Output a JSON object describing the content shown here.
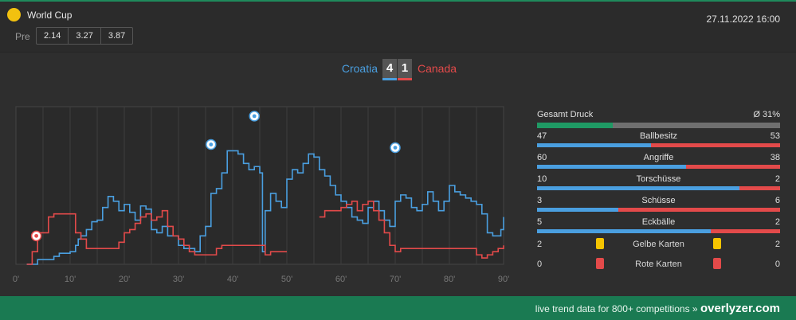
{
  "header": {
    "competition": "World Cup",
    "date": "27.11.2022 16:00",
    "pre_label": "Pre",
    "odds": [
      "2.14",
      "3.27",
      "3.87"
    ]
  },
  "match": {
    "home": "Croatia",
    "away": "Canada",
    "home_score": "4",
    "away_score": "1"
  },
  "colors": {
    "home": "#4a9fe0",
    "away": "#e34a4a",
    "accent": "#1f8a5c",
    "card_yellow": "#f5c400",
    "card_red": "#e34a4a"
  },
  "chart_data": {
    "type": "line",
    "x_ticks": [
      "0'",
      "10'",
      "20'",
      "30'",
      "40'",
      "50'",
      "60'",
      "70'",
      "80'",
      "90'"
    ],
    "xlim": [
      0,
      90
    ],
    "ylim": [
      0,
      100
    ],
    "series": [
      {
        "name": "Croatia",
        "points": [
          [
            2,
            0
          ],
          [
            4,
            3
          ],
          [
            7,
            5
          ],
          [
            8,
            7
          ],
          [
            10,
            8
          ],
          [
            11,
            12
          ],
          [
            11.5,
            16
          ],
          [
            12,
            18
          ],
          [
            13,
            22
          ],
          [
            14,
            27
          ],
          [
            15,
            28
          ],
          [
            16,
            36
          ],
          [
            17,
            43
          ],
          [
            18,
            40
          ],
          [
            19,
            34
          ],
          [
            20,
            38
          ],
          [
            21,
            33
          ],
          [
            22,
            28
          ],
          [
            23,
            37
          ],
          [
            24,
            35
          ],
          [
            25,
            22
          ],
          [
            26,
            20
          ],
          [
            27,
            24
          ],
          [
            28,
            18
          ],
          [
            29,
            18
          ],
          [
            30,
            12
          ],
          [
            31,
            10
          ],
          [
            32,
            10
          ],
          [
            33,
            8
          ],
          [
            34,
            18
          ],
          [
            35,
            24
          ],
          [
            36,
            45
          ],
          [
            37,
            48
          ],
          [
            38,
            58
          ],
          [
            39,
            72
          ],
          [
            40,
            72
          ],
          [
            41,
            70
          ],
          [
            42,
            64
          ],
          [
            43,
            60
          ],
          [
            44,
            62
          ],
          [
            45,
            58
          ],
          [
            45.5,
            8
          ],
          [
            46,
            34
          ],
          [
            47,
            45
          ],
          [
            48,
            40
          ],
          [
            49,
            36
          ],
          [
            50,
            54
          ],
          [
            51,
            60
          ],
          [
            52,
            58
          ],
          [
            53,
            64
          ],
          [
            54,
            70
          ],
          [
            55,
            68
          ],
          [
            56,
            60
          ],
          [
            57,
            56
          ],
          [
            58,
            50
          ],
          [
            59,
            44
          ],
          [
            60,
            40
          ],
          [
            61,
            36
          ],
          [
            62,
            30
          ],
          [
            63,
            28
          ],
          [
            64,
            26
          ],
          [
            65,
            36
          ],
          [
            66,
            40
          ],
          [
            67,
            34
          ],
          [
            68,
            28
          ],
          [
            69,
            24
          ],
          [
            70,
            40
          ],
          [
            71,
            44
          ],
          [
            72,
            42
          ],
          [
            73,
            36
          ],
          [
            74,
            34
          ],
          [
            75,
            38
          ],
          [
            76,
            46
          ],
          [
            77,
            40
          ],
          [
            78,
            34
          ],
          [
            79,
            40
          ],
          [
            80,
            50
          ],
          [
            81,
            46
          ],
          [
            82,
            44
          ],
          [
            83,
            42
          ],
          [
            84,
            40
          ],
          [
            85,
            38
          ],
          [
            86,
            32
          ],
          [
            87,
            20
          ],
          [
            88,
            18
          ],
          [
            89,
            18
          ],
          [
            89.5,
            22
          ],
          [
            90,
            30
          ]
        ]
      },
      {
        "name": "Canada",
        "points": [
          [
            2,
            0
          ],
          [
            3,
            8
          ],
          [
            4,
            20
          ],
          [
            6,
            30
          ],
          [
            7,
            32
          ],
          [
            8,
            32
          ],
          [
            10,
            32
          ],
          [
            11,
            20
          ],
          [
            12,
            16
          ],
          [
            13,
            10
          ],
          [
            14,
            10
          ],
          [
            15,
            10
          ],
          [
            16,
            10
          ],
          [
            17,
            10
          ],
          [
            18,
            10
          ],
          [
            19,
            14
          ],
          [
            20,
            20
          ],
          [
            21,
            22
          ],
          [
            22,
            26
          ],
          [
            23,
            30
          ],
          [
            24,
            32
          ],
          [
            25,
            28
          ],
          [
            26,
            30
          ],
          [
            27,
            34
          ],
          [
            28,
            24
          ],
          [
            29,
            18
          ],
          [
            30,
            16
          ],
          [
            31,
            12
          ],
          [
            32,
            8
          ],
          [
            33,
            6
          ],
          [
            34,
            6
          ],
          [
            35,
            6
          ],
          [
            36,
            6
          ],
          [
            37,
            10
          ],
          [
            38,
            12
          ],
          [
            39,
            12
          ],
          [
            40,
            12
          ],
          [
            41,
            12
          ],
          [
            42,
            12
          ],
          [
            43,
            12
          ],
          [
            44,
            12
          ],
          [
            45,
            12
          ],
          [
            46,
            6
          ],
          [
            47,
            8
          ],
          [
            48,
            8
          ],
          [
            50,
            8
          ]
        ]
      },
      {
        "name": "Canada",
        "points": [
          [
            56,
            30
          ],
          [
            57,
            34
          ],
          [
            58,
            34
          ],
          [
            59,
            34
          ],
          [
            60,
            36
          ],
          [
            61,
            38
          ],
          [
            62,
            40
          ],
          [
            63,
            34
          ],
          [
            64,
            38
          ],
          [
            65,
            40
          ],
          [
            66,
            34
          ],
          [
            67,
            28
          ],
          [
            68,
            20
          ],
          [
            69,
            12
          ],
          [
            70,
            8
          ],
          [
            71,
            10
          ],
          [
            72,
            10
          ],
          [
            74,
            10
          ],
          [
            76,
            10
          ],
          [
            78,
            10
          ],
          [
            80,
            10
          ],
          [
            82,
            10
          ],
          [
            84,
            10
          ],
          [
            85,
            6
          ],
          [
            86,
            4
          ],
          [
            87,
            6
          ],
          [
            88,
            8
          ],
          [
            89,
            10
          ],
          [
            90,
            12
          ]
        ]
      }
    ],
    "goal_minutes": [
      2,
      36,
      44,
      70
    ],
    "grid": true
  },
  "stats": {
    "pressure": {
      "label": "Gesamt Druck",
      "value": "Ø 31%",
      "fraction": 0.31
    },
    "rows": [
      {
        "label": "Ballbesitz",
        "home": "47",
        "away": "53"
      },
      {
        "label": "Angriffe",
        "home": "60",
        "away": "38"
      },
      {
        "label": "Torschüsse",
        "home": "10",
        "away": "2"
      },
      {
        "label": "Schüsse",
        "home": "3",
        "away": "6"
      },
      {
        "label": "Eckbälle",
        "home": "5",
        "away": "2"
      }
    ],
    "cards": [
      {
        "label": "Gelbe Karten",
        "home": "2",
        "away": "2",
        "color": "yellow"
      },
      {
        "label": "Rote Karten",
        "home": "0",
        "away": "0",
        "color": "red"
      }
    ]
  },
  "footer": {
    "text": "live trend data for 800+ competitions »",
    "brand": "overlyzer.com"
  }
}
